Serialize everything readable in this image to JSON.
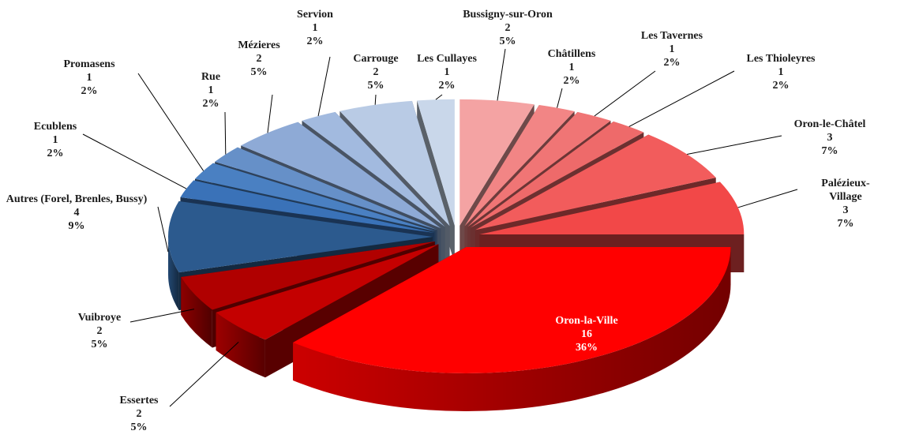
{
  "chart_data": {
    "type": "pie3d",
    "categories": [
      "Bussigny-sur-Oron",
      "Châtillens",
      "Les Tavernes",
      "Les Thioleyres",
      "Oron-le-Châtel",
      "Palézieux-Village",
      "Oron-la-Ville",
      "Essertes",
      "Vuibroye",
      "Autres (Forel, Brenles, Bussy)",
      "Ecublens",
      "Promasens",
      "Rue",
      "Mézieres",
      "Servion",
      "Carrouge",
      "Les Cullayes"
    ],
    "values": [
      2,
      1,
      1,
      1,
      3,
      3,
      16,
      2,
      2,
      4,
      1,
      1,
      1,
      2,
      1,
      2,
      1
    ],
    "percent_labels": [
      "5%",
      "2%",
      "2%",
      "2%",
      "7%",
      "7%",
      "36%",
      "5%",
      "5%",
      "9%",
      "2%",
      "2%",
      "2%",
      "5%",
      "2%",
      "5%",
      "2%"
    ],
    "colors": [
      "#f4a3a3",
      "#f28585",
      "#f07575",
      "#ee6a6a",
      "#f25c5c",
      "#f24848",
      "#ff0000",
      "#c40000",
      "#b00000",
      "#2c5a8e",
      "#3a72b8",
      "#4a80c2",
      "#6690c8",
      "#8eaad6",
      "#a2badf",
      "#b9cbe5",
      "#c9d7ea"
    ]
  }
}
